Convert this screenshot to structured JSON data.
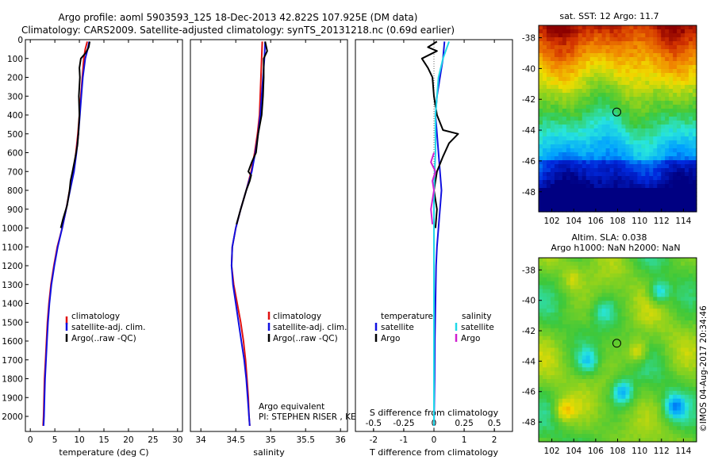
{
  "header": {
    "line1": "Argo profile: aoml 5903593_125 18-Dec-2013 42.822S 107.925E (DM data)",
    "line2": "Climatology: CARS2009. Satellite-adjusted climatology: synTS_20131218.nc (0.69d earlier)"
  },
  "colors": {
    "climatology": "#e01010",
    "satellite": "#1010e0",
    "argo": "#000000",
    "s_satellite": "#20d8e8",
    "s_argo": "#d020d0"
  },
  "chart_data": [
    {
      "type": "line",
      "title": "",
      "xlabel": "temperature (deg C)",
      "ylabel": "",
      "xlim": [
        -1,
        31
      ],
      "ylim": [
        2080,
        0
      ],
      "xticks": [
        0,
        5,
        10,
        15,
        20,
        25,
        30
      ],
      "yticks": [
        0,
        100,
        200,
        300,
        400,
        500,
        600,
        700,
        800,
        900,
        1000,
        1100,
        1200,
        1300,
        1400,
        1500,
        1600,
        1700,
        1800,
        1900,
        2000
      ],
      "legend": [
        "climatology",
        "satellite-adj. clim.",
        "Argo(..raw -QC)"
      ],
      "series": [
        {
          "name": "climatology",
          "color_key": "climatology",
          "points": [
            [
              11.6,
              10
            ],
            [
              11.2,
              50
            ],
            [
              10.9,
              100
            ],
            [
              10.6,
              200
            ],
            [
              10.3,
              300
            ],
            [
              10.0,
              400
            ],
            [
              9.7,
              500
            ],
            [
              9.3,
              600
            ],
            [
              8.8,
              700
            ],
            [
              8.0,
              800
            ],
            [
              7.3,
              900
            ],
            [
              6.5,
              1000
            ],
            [
              5.5,
              1100
            ],
            [
              4.8,
              1200
            ],
            [
              4.2,
              1300
            ],
            [
              3.8,
              1400
            ],
            [
              3.5,
              1500
            ],
            [
              3.3,
              1600
            ],
            [
              3.1,
              1700
            ],
            [
              2.9,
              1800
            ],
            [
              2.8,
              1900
            ],
            [
              2.7,
              2000
            ],
            [
              2.6,
              2050
            ]
          ]
        },
        {
          "name": "satellite-adj. clim.",
          "color_key": "satellite",
          "points": [
            [
              12.0,
              10
            ],
            [
              11.7,
              50
            ],
            [
              11.2,
              100
            ],
            [
              10.7,
              200
            ],
            [
              10.4,
              300
            ],
            [
              10.1,
              400
            ],
            [
              9.8,
              500
            ],
            [
              9.4,
              600
            ],
            [
              8.9,
              700
            ],
            [
              8.1,
              800
            ],
            [
              7.3,
              900
            ],
            [
              6.5,
              1000
            ],
            [
              5.6,
              1100
            ],
            [
              4.9,
              1200
            ],
            [
              4.3,
              1300
            ],
            [
              3.9,
              1400
            ],
            [
              3.6,
              1500
            ],
            [
              3.4,
              1600
            ],
            [
              3.2,
              1700
            ],
            [
              3.0,
              1800
            ],
            [
              2.9,
              1900
            ],
            [
              2.8,
              2000
            ],
            [
              2.7,
              2050
            ]
          ]
        },
        {
          "name": "Argo(..raw -QC)",
          "color_key": "argo",
          "points": [
            [
              12.1,
              10
            ],
            [
              11.9,
              40
            ],
            [
              11.3,
              70
            ],
            [
              10.3,
              100
            ],
            [
              10.0,
              150
            ],
            [
              10.1,
              200
            ],
            [
              9.9,
              300
            ],
            [
              10.0,
              400
            ],
            [
              9.8,
              500
            ],
            [
              9.6,
              560
            ],
            [
              9.2,
              620
            ],
            [
              8.6,
              700
            ],
            [
              8.2,
              750
            ],
            [
              8.0,
              800
            ],
            [
              7.5,
              880
            ],
            [
              6.7,
              950
            ],
            [
              6.2,
              1000
            ]
          ]
        }
      ]
    },
    {
      "type": "line",
      "title": "",
      "xlabel": "salinity",
      "ylabel": "",
      "xlim": [
        33.85,
        36.1
      ],
      "ylim": [
        2080,
        0
      ],
      "xticks": [
        34,
        34.5,
        35,
        35.5,
        36
      ],
      "yticks": [],
      "legend": [
        "climatology",
        "satellite-adj. clim.",
        "Argo(..raw -QC)"
      ],
      "series": [
        {
          "name": "climatology",
          "color_key": "climatology",
          "points": [
            [
              34.88,
              10
            ],
            [
              34.87,
              100
            ],
            [
              34.86,
              200
            ],
            [
              34.85,
              300
            ],
            [
              34.84,
              400
            ],
            [
              34.81,
              500
            ],
            [
              34.77,
              600
            ],
            [
              34.72,
              700
            ],
            [
              34.65,
              800
            ],
            [
              34.57,
              900
            ],
            [
              34.5,
              1000
            ],
            [
              34.45,
              1100
            ],
            [
              34.44,
              1200
            ],
            [
              34.47,
              1300
            ],
            [
              34.52,
              1400
            ],
            [
              34.57,
              1500
            ],
            [
              34.61,
              1600
            ],
            [
              34.64,
              1700
            ],
            [
              34.66,
              1800
            ],
            [
              34.68,
              1900
            ],
            [
              34.69,
              2000
            ],
            [
              34.7,
              2050
            ]
          ]
        },
        {
          "name": "satellite-adj. clim.",
          "color_key": "satellite",
          "points": [
            [
              34.92,
              10
            ],
            [
              34.91,
              100
            ],
            [
              34.89,
              200
            ],
            [
              34.87,
              300
            ],
            [
              34.85,
              400
            ],
            [
              34.82,
              500
            ],
            [
              34.78,
              600
            ],
            [
              34.73,
              700
            ],
            [
              34.65,
              800
            ],
            [
              34.57,
              900
            ],
            [
              34.5,
              1000
            ],
            [
              34.45,
              1100
            ],
            [
              34.44,
              1200
            ],
            [
              34.46,
              1300
            ],
            [
              34.5,
              1400
            ],
            [
              34.54,
              1500
            ],
            [
              34.58,
              1600
            ],
            [
              34.62,
              1700
            ],
            [
              34.65,
              1800
            ],
            [
              34.67,
              1900
            ],
            [
              34.69,
              2000
            ],
            [
              34.7,
              2050
            ]
          ]
        },
        {
          "name": "Argo(..raw -QC)",
          "color_key": "argo",
          "points": [
            [
              34.92,
              10
            ],
            [
              34.95,
              60
            ],
            [
              34.9,
              100
            ],
            [
              34.9,
              200
            ],
            [
              34.89,
              300
            ],
            [
              34.87,
              400
            ],
            [
              34.82,
              500
            ],
            [
              34.79,
              600
            ],
            [
              34.73,
              650
            ],
            [
              34.68,
              700
            ],
            [
              34.72,
              720
            ],
            [
              34.7,
              750
            ],
            [
              34.65,
              800
            ],
            [
              34.57,
              900
            ],
            [
              34.51,
              980
            ]
          ]
        }
      ],
      "annotations": [
        "Argo equivalent",
        "PI: STEPHEN RISER , KENNETH JOHNSON"
      ]
    },
    {
      "type": "line",
      "title": "",
      "xlabel": "T difference from climatology",
      "top_axis_label": "S difference from climatology",
      "ylabel": "",
      "xlim": [
        -2.6,
        2.6
      ],
      "ylim": [
        2080,
        0
      ],
      "xticks": [
        -2,
        -1,
        0,
        1,
        2
      ],
      "top_ticks": [
        "-0.5",
        "-0.25",
        "0",
        "0.25",
        "0.5"
      ],
      "yticks": [],
      "legend_groups": [
        {
          "title": "temperature",
          "items": [
            "satellite",
            "Argo"
          ]
        },
        {
          "title": "salinity",
          "items": [
            "satellite",
            "Argo"
          ]
        }
      ],
      "series": [
        {
          "name": "T satellite",
          "color_key": "satellite",
          "points": [
            [
              0.35,
              10
            ],
            [
              0.3,
              100
            ],
            [
              0.2,
              200
            ],
            [
              0.1,
              300
            ],
            [
              0.05,
              400
            ],
            [
              0.1,
              500
            ],
            [
              0.15,
              600
            ],
            [
              0.2,
              700
            ],
            [
              0.25,
              800
            ],
            [
              0.2,
              900
            ],
            [
              0.15,
              1000
            ],
            [
              0.1,
              1100
            ],
            [
              0.07,
              1200
            ],
            [
              0.05,
              1400
            ],
            [
              0.03,
              1600
            ],
            [
              0.02,
              1800
            ],
            [
              0.0,
              2050
            ]
          ]
        },
        {
          "name": "T Argo",
          "color_key": "argo",
          "points": [
            [
              0.1,
              10
            ],
            [
              -0.2,
              40
            ],
            [
              0.1,
              60
            ],
            [
              -0.4,
              100
            ],
            [
              -0.2,
              150
            ],
            [
              -0.05,
              200
            ],
            [
              0.0,
              300
            ],
            [
              0.1,
              400
            ],
            [
              0.3,
              480
            ],
            [
              0.8,
              500
            ],
            [
              0.5,
              550
            ],
            [
              0.3,
              620
            ],
            [
              0.1,
              700
            ],
            [
              0.0,
              800
            ],
            [
              0.1,
              900
            ],
            [
              0.05,
              1000
            ]
          ]
        },
        {
          "name": "S satellite",
          "color_key": "s_satellite",
          "points": [
            [
              0.5,
              10
            ],
            [
              0.3,
              100
            ],
            [
              0.15,
              200
            ],
            [
              0.1,
              300
            ],
            [
              0.05,
              400
            ],
            [
              0.05,
              600
            ],
            [
              0.0,
              800
            ],
            [
              0.0,
              1000
            ],
            [
              0.0,
              2050
            ]
          ]
        },
        {
          "name": "S Argo",
          "color_key": "s_argo",
          "points": [
            [
              0.0,
              600
            ],
            [
              -0.1,
              650
            ],
            [
              0.05,
              700
            ],
            [
              -0.05,
              750
            ],
            [
              0.0,
              800
            ],
            [
              -0.1,
              900
            ],
            [
              -0.05,
              980
            ]
          ]
        }
      ]
    }
  ],
  "maps": [
    {
      "title": "sat. SST: 12 Argo: 11.7",
      "kind": "sst",
      "xlim": [
        100.8,
        115.2
      ],
      "ylim": [
        -49.3,
        -37.2
      ],
      "xticks": [
        "102",
        "104",
        "106",
        "108",
        "110",
        "112",
        "114"
      ],
      "yticks": [
        "-38",
        "-40",
        "-42",
        "-44",
        "-46",
        "-48"
      ],
      "marker": {
        "lon": 107.925,
        "lat": -42.822
      }
    },
    {
      "title_line1": "Altim. SLA: 0.038",
      "title_line2": "Argo h1000: NaN h2000: NaN",
      "kind": "sla",
      "xlim": [
        100.8,
        115.2
      ],
      "ylim": [
        -49.3,
        -37.2
      ],
      "xticks": [
        "102",
        "104",
        "106",
        "108",
        "110",
        "112",
        "114"
      ],
      "yticks": [
        "-38",
        "-40",
        "-42",
        "-44",
        "-46",
        "-48"
      ],
      "marker": {
        "lon": 107.925,
        "lat": -42.822
      }
    }
  ],
  "credit": "©IMOS 04-Aug-2017 20:34:46"
}
